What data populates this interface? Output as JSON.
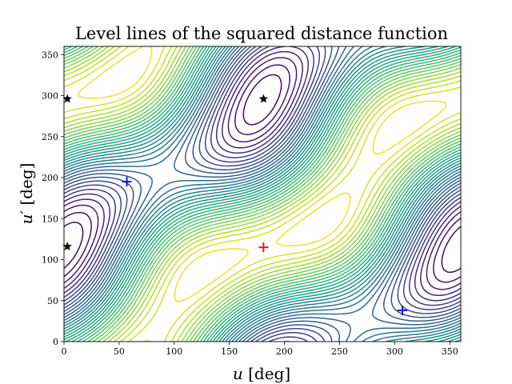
{
  "chart_data": {
    "type": "contour",
    "title": "Level lines of the squared distance function",
    "xlabel": "u [deg]",
    "ylabel": "u′ [deg]",
    "xlim": [
      0,
      360
    ],
    "ylim": [
      0,
      360
    ],
    "xticks": [
      0,
      50,
      100,
      150,
      200,
      250,
      300,
      350
    ],
    "yticks": [
      0,
      50,
      100,
      150,
      200,
      250,
      300,
      350
    ],
    "grid": false,
    "colormap": "viridis",
    "minimum": {
      "x": 181,
      "y": 115,
      "marker": "+",
      "color": "#e8152b"
    },
    "saddles": {
      "x": [
        57,
        307
      ],
      "y": [
        195,
        38
      ],
      "marker": "+",
      "color": "#1010ee"
    },
    "maxima": {
      "x": [
        3,
        181,
        3
      ],
      "y": [
        296,
        296,
        116
      ],
      "marker": "star",
      "color": "#000000"
    }
  }
}
